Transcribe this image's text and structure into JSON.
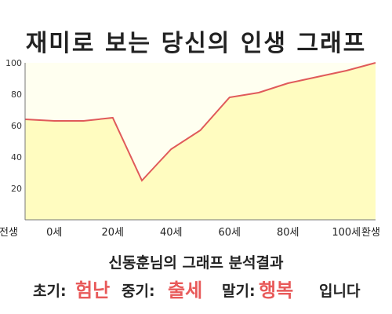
{
  "title": "재미로 보는 당신의 인생 그래프",
  "chart_data": {
    "type": "area",
    "x": [
      -10,
      0,
      10,
      20,
      30,
      35,
      40,
      50,
      60,
      70,
      80,
      90,
      100,
      110
    ],
    "values": [
      64,
      63,
      63,
      65,
      25,
      35,
      45,
      57,
      78,
      81,
      87,
      91,
      95,
      100
    ],
    "x_ticks": [
      {
        "x": -10,
        "label": "전생"
      },
      {
        "x": 0,
        "label": "0세"
      },
      {
        "x": 20,
        "label": "20세"
      },
      {
        "x": 40,
        "label": "40세"
      },
      {
        "x": 60,
        "label": "60세"
      },
      {
        "x": 80,
        "label": "80세"
      },
      {
        "x": 100,
        "label": "100세"
      },
      {
        "x": 110,
        "label": "환생"
      }
    ],
    "y_ticks": [
      20,
      40,
      60,
      80,
      100
    ],
    "xlim": [
      -10,
      110
    ],
    "ylim": [
      0,
      100
    ],
    "grid": false,
    "fill_color": "#fffcc0",
    "plot_background": "#fffff0",
    "line_color": "#e05a5a"
  },
  "analysis": {
    "heading": "신동훈님의 그래프 분석결과",
    "early_label": "초기:",
    "early_value": "험난",
    "middle_label": "중기:",
    "middle_value": "출세",
    "late_label": "말기:",
    "late_value": "행복",
    "ending": "입니다",
    "highlight_color": "#e85a5a"
  }
}
